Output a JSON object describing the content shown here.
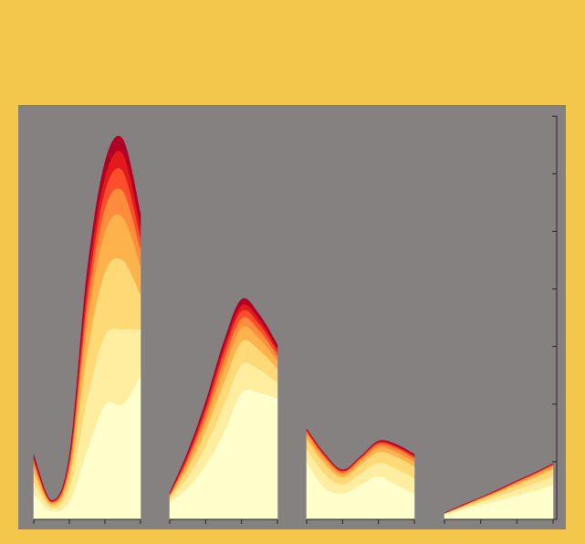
{
  "chart_data": [
    {
      "type": "area",
      "stacked": true,
      "x": [
        0,
        0.5,
        1,
        1.5,
        2,
        2.5,
        3
      ],
      "xlim": [
        0,
        3
      ],
      "xticks": [
        0,
        1,
        2,
        3
      ],
      "ylim": [
        0,
        7.15
      ],
      "series": [
        {
          "color": "#ffffcc",
          "values": [
            0.45,
            0.15,
            0.3,
            1.2,
            2.0,
            2.0,
            2.5
          ]
        },
        {
          "color": "#ffeda0",
          "values": [
            0.2,
            0.05,
            0.25,
            0.9,
            1.2,
            1.3,
            0.8
          ]
        },
        {
          "color": "#fed976",
          "values": [
            0.17,
            0.05,
            0.2,
            0.8,
            1.1,
            1.2,
            0.6
          ]
        },
        {
          "color": "#feb24c",
          "values": [
            0.1,
            0.03,
            0.12,
            0.5,
            0.7,
            0.75,
            0.5
          ]
        },
        {
          "color": "#fd8d3c",
          "values": [
            0.07,
            0.02,
            0.08,
            0.3,
            0.4,
            0.45,
            0.3
          ]
        },
        {
          "color": "#fc4e2a",
          "values": [
            0.05,
            0.01,
            0.06,
            0.2,
            0.3,
            0.35,
            0.2
          ]
        },
        {
          "color": "#e31a1c",
          "values": [
            0.04,
            0.01,
            0.05,
            0.2,
            0.25,
            0.3,
            0.2
          ]
        },
        {
          "color": "#b10026",
          "values": [
            0.04,
            0.01,
            0.04,
            0.2,
            0.25,
            0.25,
            0.2
          ]
        }
      ]
    },
    {
      "type": "area",
      "stacked": true,
      "x": [
        0,
        0.5,
        1,
        1.5,
        2,
        2.5,
        3
      ],
      "xlim": [
        0,
        3
      ],
      "xticks": [
        0,
        1,
        2,
        3
      ],
      "ylim": [
        0,
        7.15
      ],
      "series": [
        {
          "color": "#ffffcc",
          "values": [
            0.3,
            0.55,
            0.95,
            1.5,
            2.2,
            2.2,
            2.1
          ]
        },
        {
          "color": "#ffeda0",
          "values": [
            0.05,
            0.19,
            0.33,
            0.47,
            0.49,
            0.4,
            0.28
          ]
        },
        {
          "color": "#fed976",
          "values": [
            0.04,
            0.15,
            0.27,
            0.39,
            0.4,
            0.34,
            0.23
          ]
        },
        {
          "color": "#feb24c",
          "values": [
            0.02,
            0.09,
            0.16,
            0.24,
            0.24,
            0.2,
            0.14
          ]
        },
        {
          "color": "#fd8d3c",
          "values": [
            0.02,
            0.06,
            0.11,
            0.16,
            0.16,
            0.14,
            0.09
          ]
        },
        {
          "color": "#fc4e2a",
          "values": [
            0.01,
            0.05,
            0.09,
            0.13,
            0.13,
            0.11,
            0.07
          ]
        },
        {
          "color": "#e31a1c",
          "values": [
            0.01,
            0.04,
            0.07,
            0.09,
            0.1,
            0.08,
            0.06
          ]
        },
        {
          "color": "#b10026",
          "values": [
            0.01,
            0.04,
            0.06,
            0.09,
            0.1,
            0.08,
            0.06
          ]
        }
      ]
    },
    {
      "type": "area",
      "stacked": true,
      "x": [
        0,
        0.5,
        1,
        1.5,
        2,
        2.5,
        3
      ],
      "xlim": [
        0,
        3
      ],
      "xticks": [
        0,
        1,
        2,
        3
      ],
      "ylim": [
        0,
        7.15
      ],
      "series": [
        {
          "color": "#ffffcc",
          "values": [
            1.0,
            0.55,
            0.45,
            0.6,
            0.75,
            0.6,
            0.45
          ]
        },
        {
          "color": "#ffeda0",
          "values": [
            0.23,
            0.24,
            0.16,
            0.2,
            0.24,
            0.28,
            0.27
          ]
        },
        {
          "color": "#fed976",
          "values": [
            0.17,
            0.18,
            0.12,
            0.15,
            0.18,
            0.21,
            0.2
          ]
        },
        {
          "color": "#feb24c",
          "values": [
            0.07,
            0.07,
            0.05,
            0.06,
            0.08,
            0.08,
            0.08
          ]
        },
        {
          "color": "#fd8d3c",
          "values": [
            0.05,
            0.05,
            0.04,
            0.04,
            0.05,
            0.06,
            0.06
          ]
        },
        {
          "color": "#fc4e2a",
          "values": [
            0.02,
            0.02,
            0.02,
            0.02,
            0.03,
            0.03,
            0.03
          ]
        },
        {
          "color": "#e31a1c",
          "values": [
            0.02,
            0.02,
            0.01,
            0.01,
            0.02,
            0.02,
            0.02
          ]
        },
        {
          "color": "#b10026",
          "values": [
            0.01,
            0.01,
            0.01,
            0.01,
            0.01,
            0.02,
            0.02
          ]
        }
      ]
    },
    {
      "type": "area",
      "stacked": true,
      "x": [
        0,
        0.5,
        1,
        1.5,
        2,
        2.5,
        3
      ],
      "xlim": [
        0,
        3
      ],
      "xticks": [
        0,
        1,
        2,
        3
      ],
      "ylim": [
        0,
        7.15
      ],
      "yticks": [
        0,
        1,
        2,
        3,
        4,
        5,
        6,
        7
      ],
      "y_axis_side": "right",
      "series": [
        {
          "color": "#ffffcc",
          "values": [
            0.08,
            0.17,
            0.25,
            0.33,
            0.42,
            0.5,
            0.6
          ]
        },
        {
          "color": "#ffeda0",
          "values": [
            0.01,
            0.03,
            0.05,
            0.08,
            0.1,
            0.13,
            0.15
          ]
        },
        {
          "color": "#fed976",
          "values": [
            0.01,
            0.02,
            0.04,
            0.06,
            0.08,
            0.1,
            0.12
          ]
        },
        {
          "color": "#feb24c",
          "values": [
            0.01,
            0.01,
            0.02,
            0.02,
            0.03,
            0.04,
            0.05
          ]
        },
        {
          "color": "#fd8d3c",
          "values": [
            0,
            0.01,
            0.01,
            0.01,
            0.02,
            0.02,
            0.02
          ]
        },
        {
          "color": "#fc4e2a",
          "values": [
            0,
            0,
            0.01,
            0.01,
            0.01,
            0.01,
            0.02
          ]
        },
        {
          "color": "#e31a1c",
          "values": [
            0,
            0.01,
            0,
            0.01,
            0.01,
            0.01,
            0.01
          ]
        },
        {
          "color": "#b10026",
          "values": [
            0,
            0,
            0,
            0,
            0,
            0,
            0
          ]
        }
      ]
    }
  ]
}
